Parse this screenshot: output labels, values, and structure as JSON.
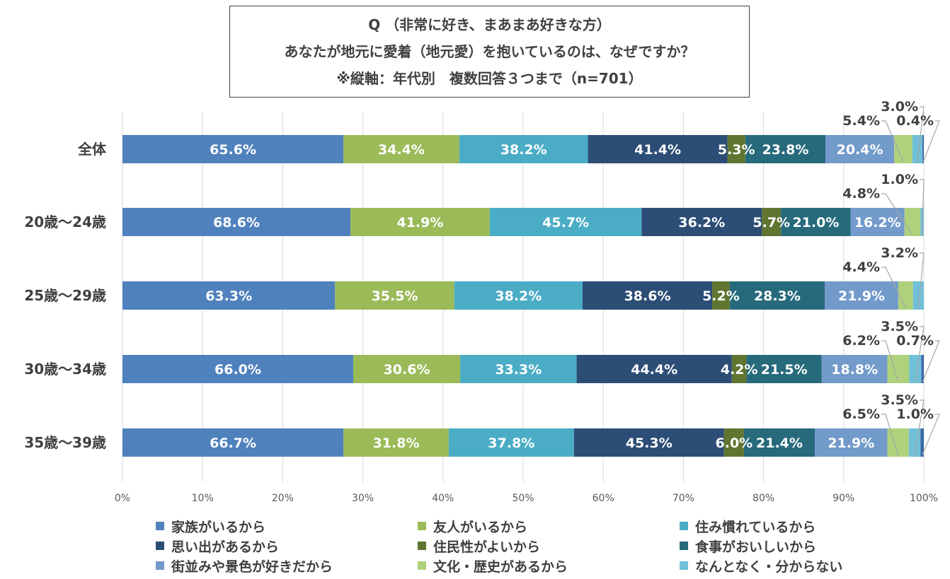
{
  "title": {
    "line1": "Q （非常に好き、まあまあ好きな方）",
    "line2": "あなたが地元に愛着（地元愛）を抱いているのは、なぜですか？",
    "line3": "※縦軸：年代別　複数回答３つまで（n=701）"
  },
  "chart_data": {
    "type": "bar",
    "orientation": "horizontal",
    "stacked": "percent",
    "categories": [
      "全体",
      "20歳～24歳",
      "25歳～29歳",
      "30歳～34歳",
      "35歳～39歳"
    ],
    "series": [
      {
        "name": "家族がいるから",
        "color": "#4f81bd",
        "values": [
          65.6,
          68.6,
          63.3,
          66.0,
          66.7
        ]
      },
      {
        "name": "友人がいるから",
        "color": "#9bbb59",
        "values": [
          34.4,
          41.9,
          35.5,
          30.6,
          31.8
        ]
      },
      {
        "name": "住み慣れているから",
        "color": "#4bacc6",
        "values": [
          38.2,
          45.7,
          38.2,
          33.3,
          37.8
        ]
      },
      {
        "name": "思い出があるから",
        "color": "#2c4d75",
        "values": [
          41.4,
          36.2,
          38.6,
          44.4,
          45.3
        ]
      },
      {
        "name": "住民性がよいから",
        "color": "#5f7530",
        "values": [
          5.3,
          5.7,
          5.2,
          4.2,
          6.0
        ]
      },
      {
        "name": "食事がおいしいから",
        "color": "#276a7c",
        "values": [
          23.8,
          21.0,
          28.3,
          21.5,
          21.4
        ]
      },
      {
        "name": "街並みや景色が好きだから",
        "color": "#729aca",
        "values": [
          20.4,
          16.2,
          21.9,
          18.8,
          21.9
        ]
      },
      {
        "name": "文化・歴史があるから",
        "color": "#afd17c",
        "values": [
          5.4,
          4.8,
          4.4,
          6.2,
          6.5
        ]
      },
      {
        "name": "なんとなく・分からない",
        "color": "#6fc0d8",
        "values": [
          3.0,
          1.0,
          3.2,
          3.5,
          3.5
        ]
      },
      {
        "name": "",
        "color": "#3a6aa8",
        "values": [
          0.4,
          0.0,
          0.0,
          0.7,
          1.0
        ]
      }
    ],
    "xaxis_ticks": [
      "0%",
      "10%",
      "20%",
      "30%",
      "40%",
      "50%",
      "60%",
      "70%",
      "80%",
      "90%",
      "100%"
    ],
    "xlim": [
      0,
      100
    ],
    "grid": true,
    "legend_position": "bottom"
  }
}
